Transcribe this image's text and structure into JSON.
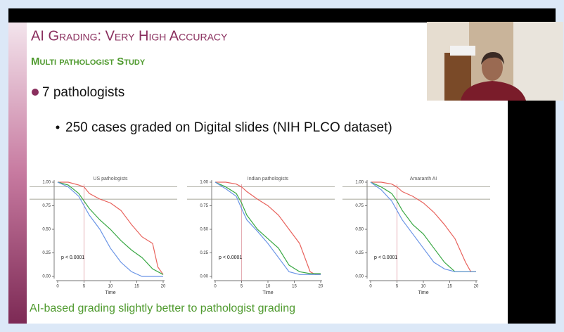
{
  "slide": {
    "title": "AI Grading: Very High Accuracy",
    "subtitle": "Multi pathologist Study",
    "bullet": "7 pathologists",
    "sub_bullet": "250 cases graded on Digital slides (NIH PLCO dataset)",
    "footer": "AI-based grading slightly better to pathologist grading"
  },
  "chart_data": [
    {
      "type": "line",
      "title": "US pathologists",
      "x_label": "Time",
      "annotation": "p < 0.0001",
      "x": [
        0,
        2,
        4,
        5,
        6,
        8,
        10,
        12,
        14,
        16,
        18,
        19,
        20
      ],
      "series": [
        {
          "color": "#e8625c",
          "values": [
            1,
            1,
            0.97,
            0.95,
            0.88,
            0.82,
            0.78,
            0.7,
            0.55,
            0.42,
            0.35,
            0.1,
            0.02
          ]
        },
        {
          "color": "#3aa845",
          "values": [
            1,
            0.97,
            0.88,
            0.8,
            0.72,
            0.6,
            0.5,
            0.38,
            0.28,
            0.2,
            0.08,
            0.05,
            0.02
          ]
        },
        {
          "color": "#6b95e6",
          "values": [
            1,
            0.95,
            0.85,
            0.75,
            0.65,
            0.5,
            0.3,
            0.15,
            0.05,
            0,
            0,
            0,
            0
          ]
        }
      ],
      "hlines": [
        0.95,
        0.82
      ],
      "vline": 5,
      "xlim": [
        0,
        20
      ],
      "xticks": [
        0,
        5,
        10,
        15,
        20
      ],
      "ylim": [
        0,
        1
      ],
      "yticks": [
        {
          "value": 0,
          "label": "0.00"
        },
        {
          "value": 0.25,
          "label": "0.25"
        },
        {
          "value": 0.5,
          "label": "0.50"
        },
        {
          "value": 0.75,
          "label": "0.75"
        },
        {
          "value": 1,
          "label": "1.00"
        }
      ]
    },
    {
      "type": "line",
      "title": "Indian pathologists",
      "x_label": "Time",
      "annotation": "p < 0.0001",
      "x": [
        0,
        2,
        4,
        5,
        6,
        8,
        10,
        12,
        14,
        16,
        18,
        19,
        20
      ],
      "series": [
        {
          "color": "#e8625c",
          "values": [
            1,
            1,
            0.98,
            0.95,
            0.9,
            0.82,
            0.75,
            0.65,
            0.5,
            0.35,
            0.05,
            0.02,
            0.02
          ]
        },
        {
          "color": "#3aa845",
          "values": [
            1,
            0.95,
            0.88,
            0.78,
            0.65,
            0.5,
            0.4,
            0.3,
            0.12,
            0.05,
            0.03,
            0.03,
            0.03
          ]
        },
        {
          "color": "#6b95e6",
          "values": [
            1,
            0.93,
            0.85,
            0.72,
            0.6,
            0.48,
            0.35,
            0.2,
            0.05,
            0.02,
            0.02,
            0.02,
            0.02
          ]
        }
      ],
      "hlines": [
        0.95,
        0.82
      ],
      "vline": 5,
      "xlim": [
        0,
        20
      ],
      "xticks": [
        0,
        5,
        10,
        15,
        20
      ],
      "ylim": [
        0,
        1
      ],
      "yticks": [
        {
          "value": 0,
          "label": "0.00"
        },
        {
          "value": 0.25,
          "label": "0.25"
        },
        {
          "value": 0.5,
          "label": "0.50"
        },
        {
          "value": 0.75,
          "label": "0.75"
        },
        {
          "value": 1,
          "label": "1.00"
        }
      ]
    },
    {
      "type": "line",
      "title": "Amaranth AI",
      "x_label": "Time",
      "annotation": "p < 0.0001",
      "x": [
        0,
        2,
        4,
        5,
        6,
        8,
        10,
        12,
        14,
        16,
        18,
        19,
        20
      ],
      "series": [
        {
          "color": "#e8625c",
          "values": [
            1,
            1,
            0.98,
            0.95,
            0.9,
            0.85,
            0.78,
            0.68,
            0.55,
            0.4,
            0.15,
            0.05,
            0.05
          ]
        },
        {
          "color": "#3aa845",
          "values": [
            1,
            0.95,
            0.88,
            0.8,
            0.7,
            0.55,
            0.45,
            0.3,
            0.15,
            0.05,
            0.05,
            0.05,
            0.05
          ]
        },
        {
          "color": "#6b95e6",
          "values": [
            1,
            0.92,
            0.8,
            0.7,
            0.6,
            0.45,
            0.3,
            0.15,
            0.08,
            0.05,
            0.05,
            0.05,
            0.05
          ]
        }
      ],
      "hlines": [
        0.95,
        0.82
      ],
      "vline": 5,
      "xlim": [
        0,
        20
      ],
      "xticks": [
        0,
        5,
        10,
        15,
        20
      ],
      "ylim": [
        0,
        1
      ],
      "yticks": [
        {
          "value": 0,
          "label": "0.00"
        },
        {
          "value": 0.25,
          "label": "0.25"
        },
        {
          "value": 0.5,
          "label": "0.50"
        },
        {
          "value": 0.75,
          "label": "0.75"
        },
        {
          "value": 1,
          "label": "1.00"
        }
      ]
    }
  ]
}
